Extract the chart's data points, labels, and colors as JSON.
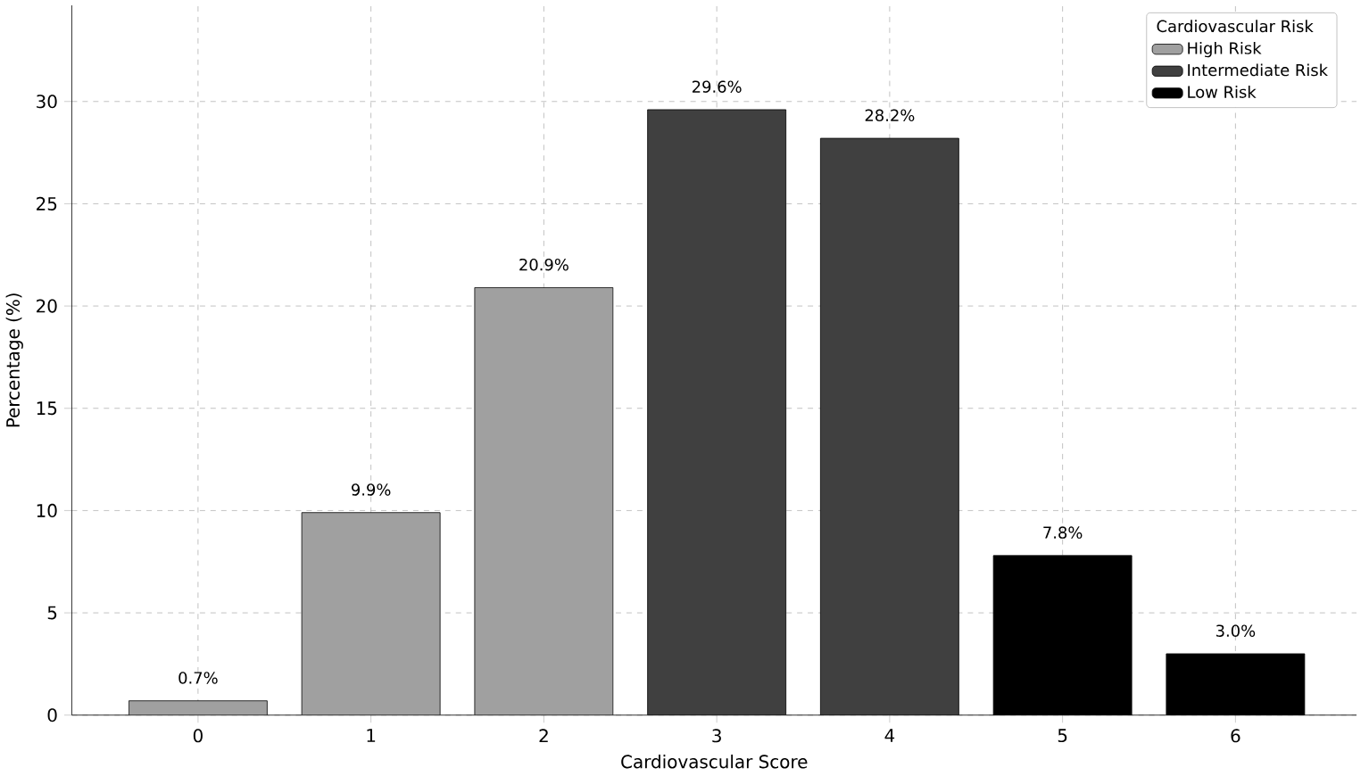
{
  "chart_data": {
    "type": "bar",
    "xlabel": "Cardiovascular Score",
    "ylabel": "Percentage (%)",
    "legend_title": "Cardiovascular Risk",
    "categories": [
      "0",
      "1",
      "2",
      "3",
      "4",
      "5",
      "6"
    ],
    "series": [
      {
        "name": "High Risk",
        "color": "#a0a0a0",
        "values": [
          0.7,
          9.9,
          20.9,
          null,
          null,
          null,
          null
        ],
        "value_labels": [
          "0.7%",
          "9.9%",
          "20.9%",
          null,
          null,
          null,
          null
        ]
      },
      {
        "name": "Intermediate Risk",
        "color": "#404040",
        "values": [
          null,
          null,
          null,
          29.6,
          28.2,
          null,
          null
        ],
        "value_labels": [
          null,
          null,
          null,
          "29.6%",
          "28.2%",
          null,
          null
        ]
      },
      {
        "name": "Low Risk",
        "color": "#000000",
        "values": [
          null,
          null,
          null,
          null,
          null,
          7.8,
          3.0
        ],
        "value_labels": [
          null,
          null,
          null,
          null,
          null,
          "7.8%",
          "3.0%"
        ]
      }
    ],
    "ylim": [
      0,
      34.7
    ],
    "yticks": [
      0,
      5,
      10,
      15,
      20,
      25,
      30
    ],
    "grid": true,
    "legend": "top right"
  }
}
